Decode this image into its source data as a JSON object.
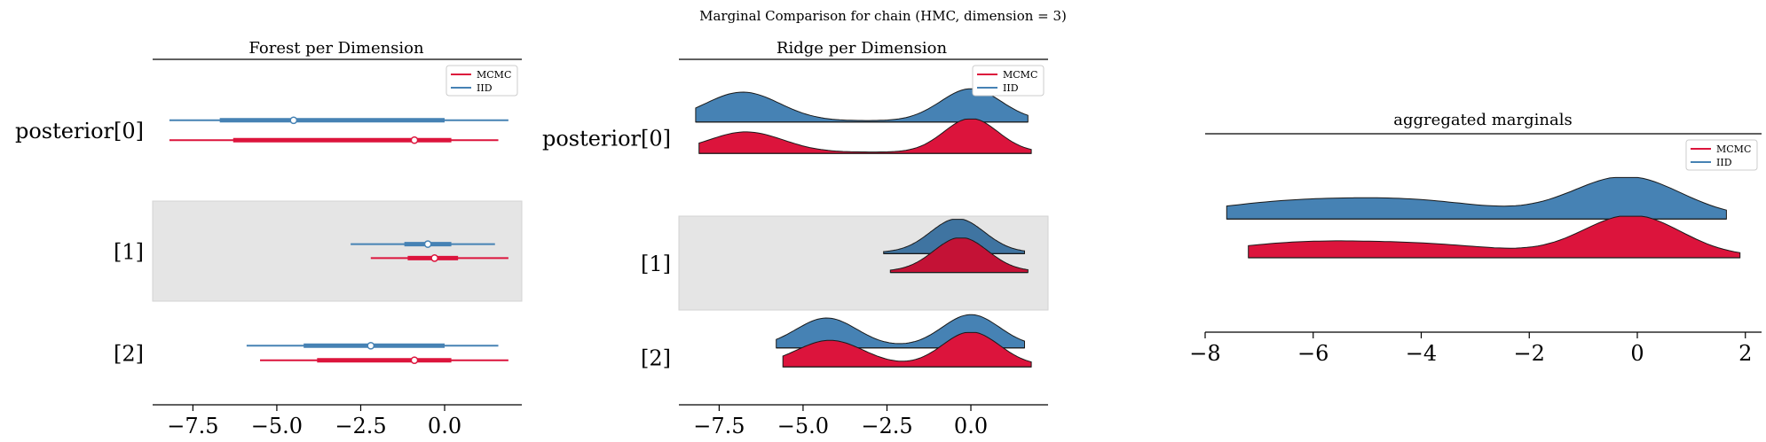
{
  "suptitle": "Marginal Comparison for chain (HMC, dimension = 3)",
  "colors": {
    "mcmc": "#dc143c",
    "iid": "#4682b4",
    "band": "#e5e5e5"
  },
  "chart_data": [
    {
      "type": "forest",
      "title": "Forest per Dimension",
      "xlim": [
        -8.7,
        2.3
      ],
      "xticks": [
        -7.5,
        -5.0,
        -2.5,
        0.0
      ],
      "xtick_labels": [
        "−7.5",
        "−5.0",
        "−2.5",
        "0.0"
      ],
      "legend": {
        "placement": "top-right",
        "entries": [
          "MCMC",
          "IID"
        ]
      },
      "row_labels": [
        "posterior[0]",
        "[1]",
        "[2]"
      ],
      "series": [
        {
          "name": "IID",
          "rows": [
            {
              "hdi94": [
                -8.2,
                1.9
              ],
              "hdi50": [
                -6.7,
                0.0
              ],
              "mean": -4.5
            },
            {
              "hdi94": [
                -2.8,
                1.5
              ],
              "hdi50": [
                -1.2,
                0.2
              ],
              "mean": -0.5
            },
            {
              "hdi94": [
                -5.9,
                1.6
              ],
              "hdi50": [
                -4.2,
                0.0
              ],
              "mean": -2.2
            }
          ]
        },
        {
          "name": "MCMC",
          "rows": [
            {
              "hdi94": [
                -8.2,
                1.6
              ],
              "hdi50": [
                -6.3,
                0.2
              ],
              "mean": -0.9
            },
            {
              "hdi94": [
                -2.2,
                1.9
              ],
              "hdi50": [
                -1.1,
                0.4
              ],
              "mean": -0.3
            },
            {
              "hdi94": [
                -5.5,
                1.9
              ],
              "hdi50": [
                -3.8,
                0.2
              ],
              "mean": -0.9
            }
          ]
        }
      ]
    },
    {
      "type": "ridge",
      "title": "Ridge per Dimension",
      "xlim": [
        -8.7,
        2.3
      ],
      "xticks": [
        -7.5,
        -5.0,
        -2.5,
        0.0
      ],
      "xtick_labels": [
        "−7.5",
        "−5.0",
        "−2.5",
        "0.0"
      ],
      "legend": {
        "placement": "top-right",
        "entries": [
          "MCMC",
          "IID"
        ]
      },
      "row_labels": [
        "posterior[0]",
        "[1]",
        "[2]"
      ],
      "series": [
        {
          "name": "IID",
          "rows": [
            {
              "range": [
                -8.2,
                1.7
              ],
              "peaks": [
                [
                  -6.8,
                  0.85,
                  1.1
                ],
                [
                  0.0,
                  0.95,
                  0.9
                ]
              ]
            },
            {
              "range": [
                -2.6,
                1.6
              ],
              "peaks": [
                [
                  -0.4,
                  1.0,
                  0.8
                ]
              ]
            },
            {
              "range": [
                -5.8,
                1.6
              ],
              "peaks": [
                [
                  -4.3,
                  0.85,
                  0.9
                ],
                [
                  0.0,
                  0.95,
                  0.85
                ]
              ]
            }
          ]
        },
        {
          "name": "MCMC",
          "rows": [
            {
              "range": [
                -8.1,
                1.8
              ],
              "peaks": [
                [
                  -6.7,
                  0.6,
                  1.1
                ],
                [
                  0.0,
                  1.0,
                  0.8
                ]
              ]
            },
            {
              "range": [
                -2.4,
                1.7
              ],
              "peaks": [
                [
                  -0.3,
                  1.0,
                  0.8
                ]
              ]
            },
            {
              "range": [
                -5.6,
                1.8
              ],
              "peaks": [
                [
                  -4.2,
                  0.75,
                  1.0
                ],
                [
                  0.0,
                  1.0,
                  0.85
                ]
              ]
            }
          ]
        }
      ]
    },
    {
      "type": "ridge",
      "title": "aggregated marginals",
      "xlim": [
        -8,
        2.3
      ],
      "xticks": [
        -8,
        -6,
        -4,
        -2,
        0,
        2
      ],
      "xtick_labels": [
        "−8",
        "−6",
        "−4",
        "−2",
        "0",
        "2"
      ],
      "legend": {
        "placement": "top-right",
        "entries": [
          "MCMC",
          "IID"
        ]
      },
      "row_labels": [],
      "series": [
        {
          "name": "IID",
          "rows": [
            {
              "range": [
                -7.6,
                1.65
              ],
              "peaks": [
                [
                  -6.5,
                  0.35,
                  1.5
                ],
                [
                  -4.0,
                  0.35,
                  1.4
                ],
                [
                  -0.2,
                  1.0,
                  1.0
                ]
              ]
            }
          ]
        },
        {
          "name": "MCMC",
          "rows": [
            {
              "range": [
                -7.2,
                1.9
              ],
              "peaks": [
                [
                  -6.3,
                  0.3,
                  1.4
                ],
                [
                  -3.8,
                  0.25,
                  1.4
                ],
                [
                  -0.1,
                  1.0,
                  0.9
                ]
              ]
            }
          ]
        }
      ]
    }
  ]
}
